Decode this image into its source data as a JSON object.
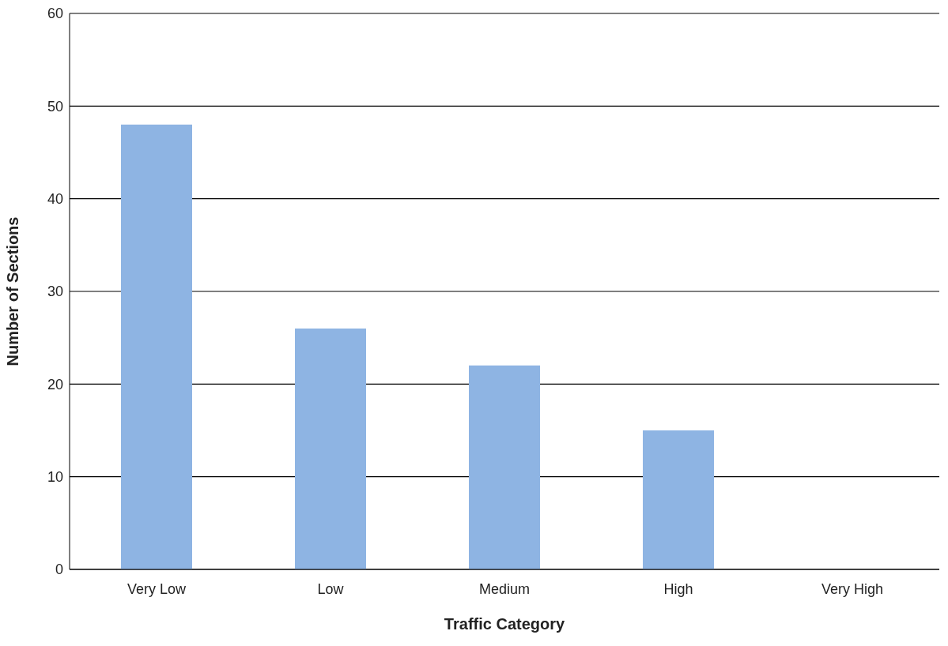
{
  "chart_data": {
    "type": "bar",
    "xlabel": "Traffic Category",
    "ylabel": "Number of Sections",
    "categories": [
      "Very Low",
      "Low",
      "Medium",
      "High",
      "Very High"
    ],
    "values": [
      48,
      26,
      22,
      15,
      0
    ],
    "color": "#8eb4e3",
    "ylim": [
      0,
      60
    ],
    "yticks": [
      0,
      10,
      20,
      30,
      40,
      50,
      60
    ],
    "grid": "y"
  }
}
